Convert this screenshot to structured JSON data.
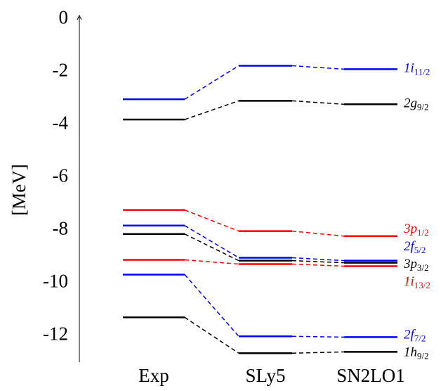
{
  "chart_data": {
    "type": "level-scheme",
    "y_label": "[MeV]",
    "categories": [
      "Exp",
      "SLy5",
      "SN2LO1"
    ],
    "ylim": [
      -13,
      0.2
    ],
    "yticks": [
      0,
      -2,
      -4,
      -6,
      -8,
      -10,
      -12
    ],
    "series": [
      {
        "name": "1i",
        "sub": "11/2",
        "color": "#0000ff",
        "values": [
          -3.03,
          -1.76,
          -1.89
        ]
      },
      {
        "name": "2g",
        "sub": "9/2",
        "color": "#000000",
        "values": [
          -3.8,
          -3.09,
          -3.22
        ]
      },
      {
        "name": "3p",
        "sub": "1/2",
        "color": "#ff0000",
        "values": [
          -7.23,
          -8.03,
          -8.22
        ]
      },
      {
        "name": "2f",
        "sub": "5/2",
        "color": "#0000ff",
        "values": [
          -7.82,
          -9.04,
          -9.15
        ]
      },
      {
        "name": "3p",
        "sub": "3/2",
        "color": "#000000",
        "values": [
          -8.14,
          -9.15,
          -9.23
        ]
      },
      {
        "name": "1i",
        "sub": "13/2",
        "color": "#ff0000",
        "values": [
          -9.12,
          -9.28,
          -9.36
        ]
      },
      {
        "name": "2f",
        "sub": "7/2",
        "color": "#0000ff",
        "values": [
          -9.68,
          -12.02,
          -12.05
        ]
      },
      {
        "name": "1h",
        "sub": "9/2",
        "color": "#000000",
        "values": [
          -11.3,
          -12.66,
          -12.61
        ]
      }
    ]
  }
}
